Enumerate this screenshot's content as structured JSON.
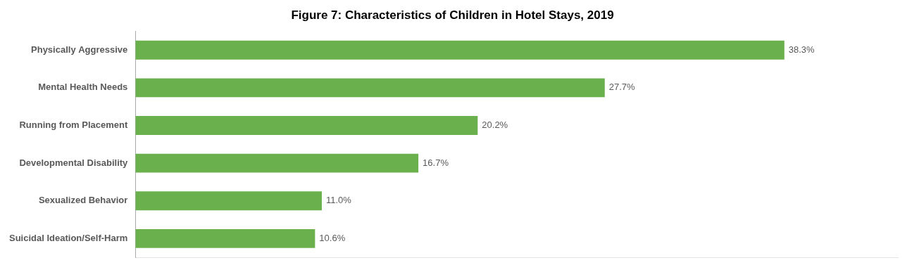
{
  "chart_data": {
    "type": "bar",
    "orientation": "horizontal",
    "title": "Figure 7: Characteristics of Children in Hotel Stays, 2019",
    "categories": [
      "Suicidal Ideation/Self-Harm",
      "Sexualized Behavior",
      "Developmental Disability",
      "Running from Placement",
      "Mental Health Needs",
      "Physically Aggressive"
    ],
    "values": [
      10.6,
      11.0,
      16.7,
      20.2,
      27.7,
      38.3
    ],
    "value_labels": [
      "10.6%",
      "11.0%",
      "16.7%",
      "20.2%",
      "27.7%",
      "38.3%"
    ],
    "data_labels": true,
    "color": "#6ab04c",
    "xlim": [
      0,
      45
    ],
    "tick_labels": "y",
    "grid": false
  }
}
